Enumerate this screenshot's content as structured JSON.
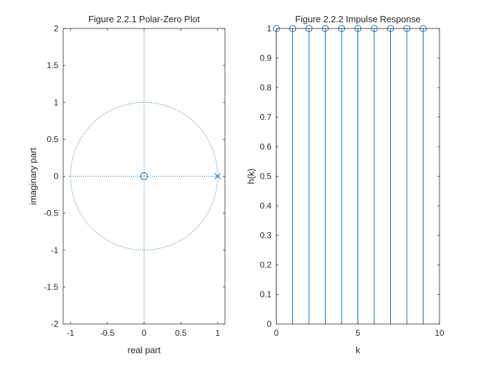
{
  "chart_data": [
    {
      "type": "scatter",
      "title": "Figure 2.2.1 Polar-Zero Plot",
      "xlabel": "real part",
      "ylabel": "imaginary part",
      "xlim": [
        -1.1,
        1.1
      ],
      "ylim": [
        -2,
        2
      ],
      "xticks": [
        -1,
        -0.5,
        0,
        0.5,
        1
      ],
      "xtick_labels": [
        "-1",
        "-0.5",
        "0",
        "0.5",
        "1"
      ],
      "yticks": [
        -2,
        -1.5,
        -1,
        -0.5,
        0,
        0.5,
        1,
        1.5,
        2
      ],
      "ytick_labels": [
        "-2",
        "-1.5",
        "-1",
        "-0.5",
        "0",
        "0.5",
        "1",
        "1.5",
        "2"
      ],
      "unit_circle_radius": 1,
      "zeros": [
        {
          "x": 0,
          "y": 0
        }
      ],
      "poles": [
        {
          "x": 1,
          "y": 0
        }
      ],
      "color": "#0072bd"
    },
    {
      "type": "stem",
      "title": "Figure 2.2.2 Impulse Response",
      "xlabel": "k",
      "ylabel": "h(k)",
      "xlim": [
        0,
        10
      ],
      "ylim": [
        0,
        1
      ],
      "xticks": [
        0,
        5,
        10
      ],
      "xtick_labels": [
        "0",
        "5",
        "10"
      ],
      "yticks": [
        0,
        0.1,
        0.2,
        0.3,
        0.4,
        0.5,
        0.6,
        0.7,
        0.8,
        0.9,
        1
      ],
      "ytick_labels": [
        "0",
        "0.1",
        "0.2",
        "0.3",
        "0.4",
        "0.5",
        "0.6",
        "0.7",
        "0.8",
        "0.9",
        "1"
      ],
      "x": [
        0,
        1,
        2,
        3,
        4,
        5,
        6,
        7,
        8,
        9
      ],
      "values": [
        1,
        1,
        1,
        1,
        1,
        1,
        1,
        1,
        1,
        1
      ],
      "color": "#0072bd"
    }
  ]
}
